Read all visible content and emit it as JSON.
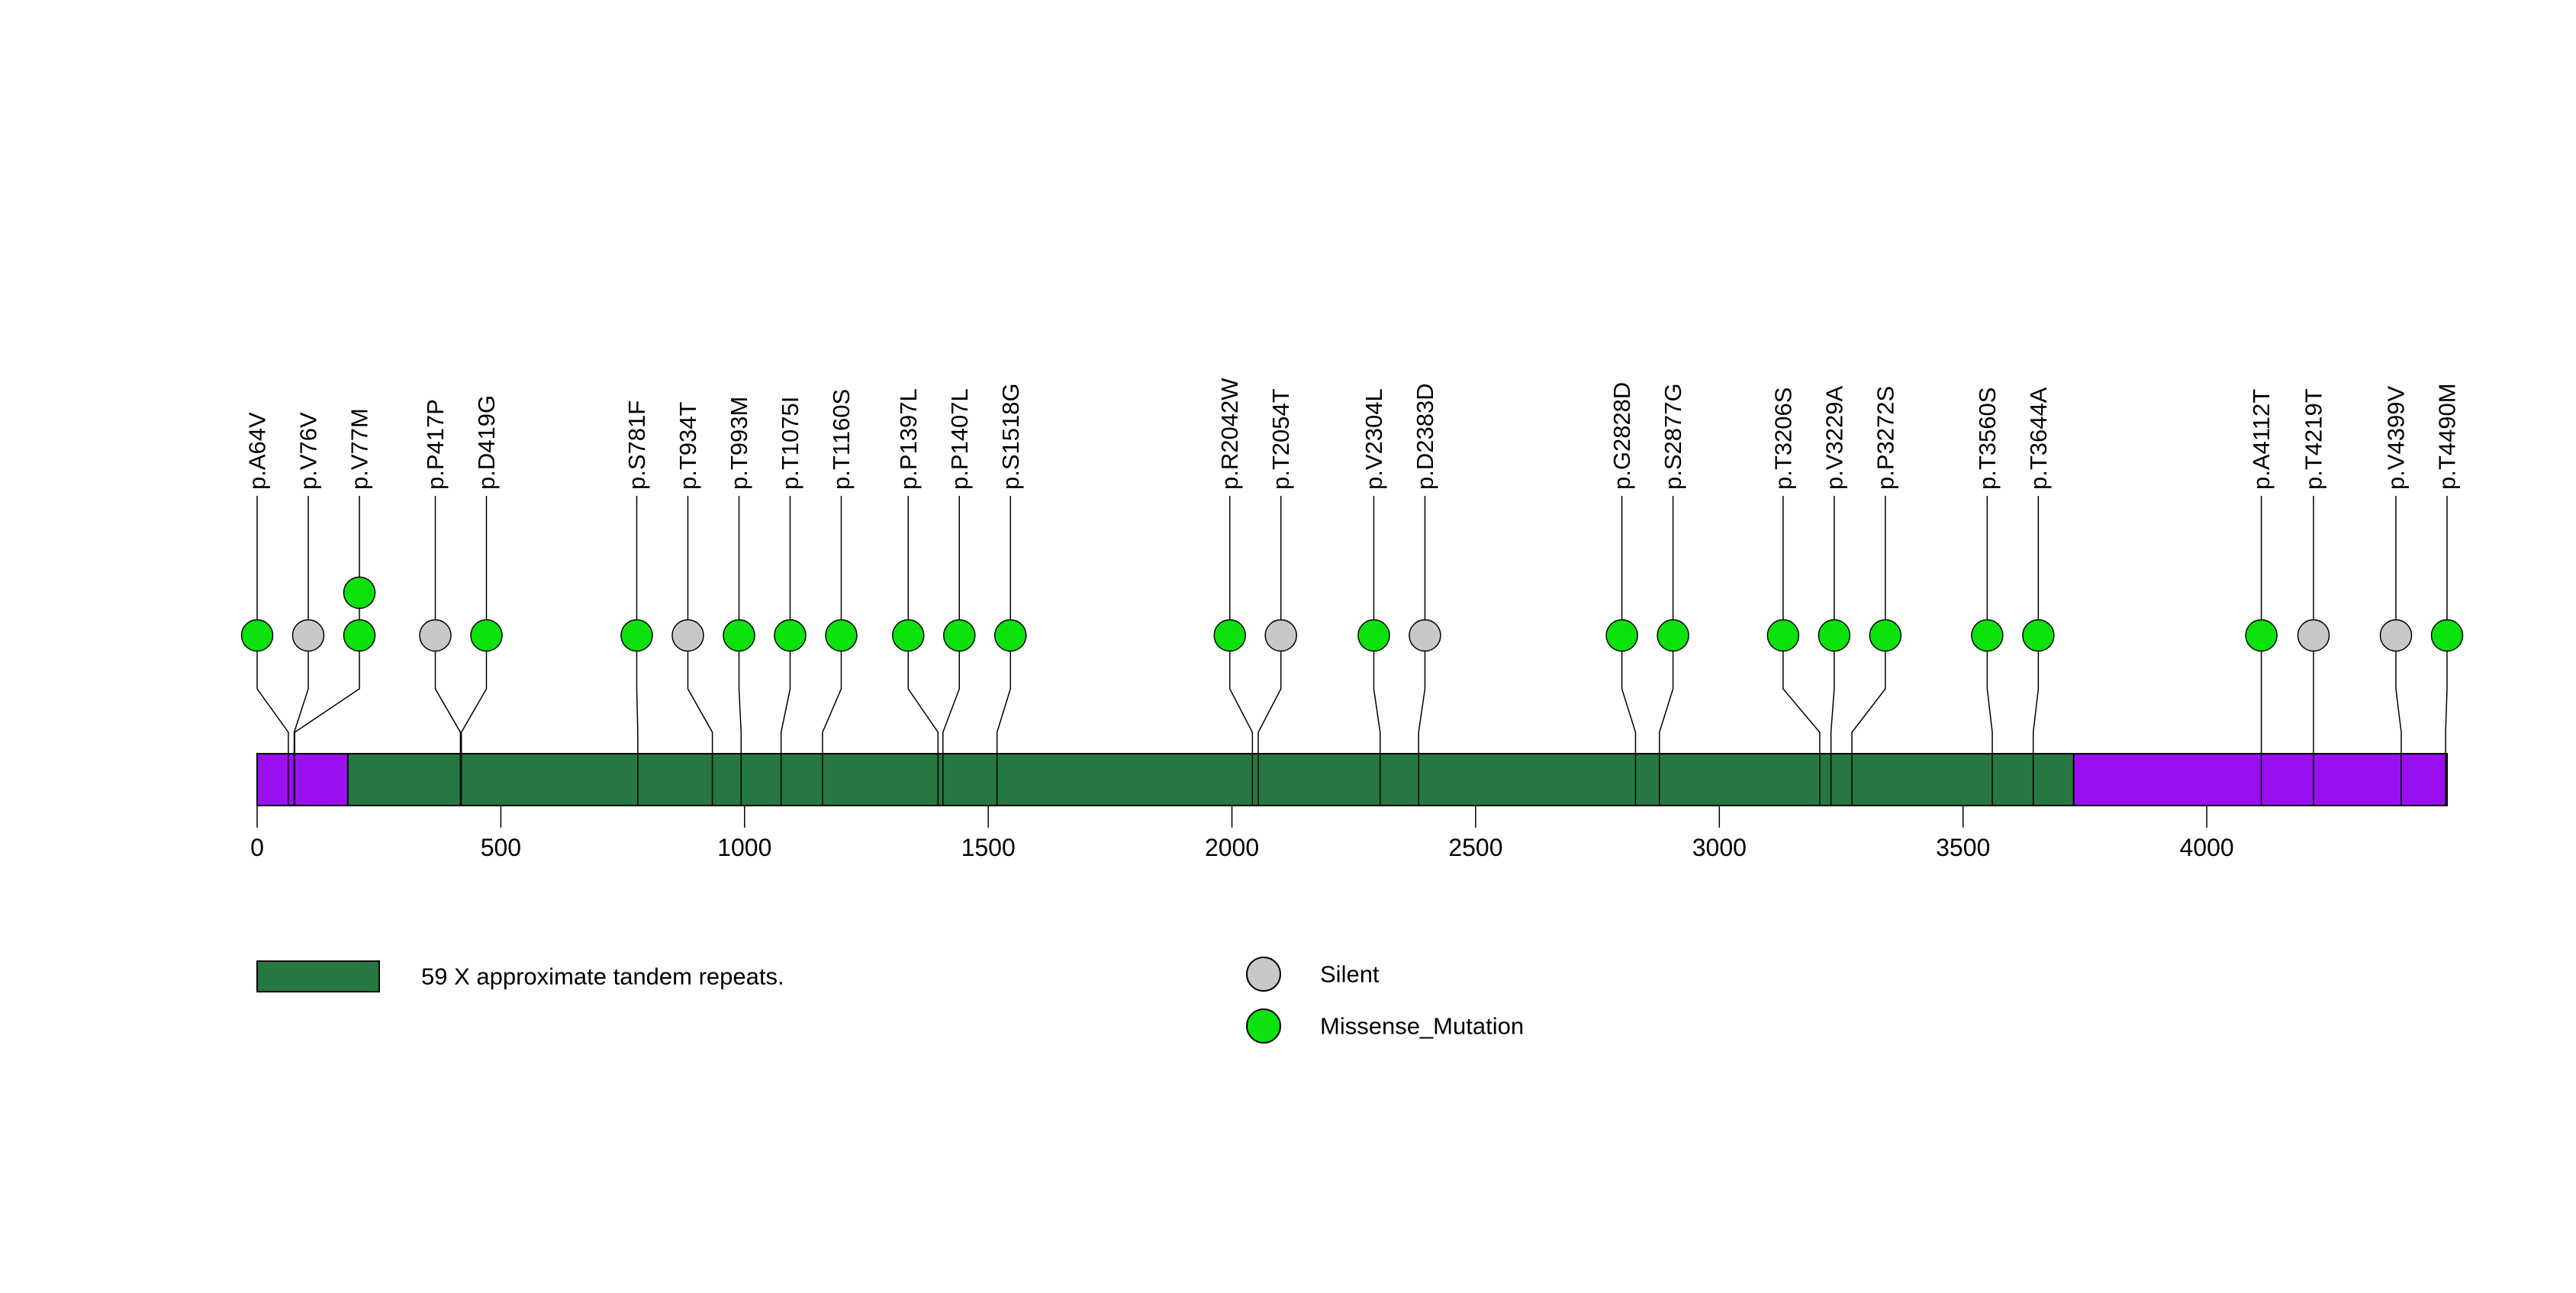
{
  "chart_data": {
    "type": "lollipop",
    "title": "",
    "xlabel": "",
    "axis": {
      "xmin": 0,
      "xmax": 4493,
      "ticks": [
        0,
        500,
        1000,
        1500,
        2000,
        2500,
        3000,
        3500,
        4000
      ],
      "grid": false
    },
    "protein": {
      "length": 4493,
      "domain": {
        "label": "59 X approximate tandem repeats.",
        "start": 186,
        "end": 3727
      }
    },
    "colors": {
      "backbone": "#9A0FF0",
      "domain": "#267741",
      "Silent": "#C8C8C8",
      "Missense_Mutation": "#0BE20B",
      "outline": "#000000"
    },
    "mutations": [
      {
        "label": "p.A64V",
        "pos": 64,
        "type": "Missense_Mutation",
        "count": 1
      },
      {
        "label": "p.V76V",
        "pos": 76,
        "type": "Silent",
        "count": 1
      },
      {
        "label": "p.V77M",
        "pos": 77,
        "type": "Missense_Mutation",
        "count": 2
      },
      {
        "label": "p.P417P",
        "pos": 417,
        "type": "Silent",
        "count": 1
      },
      {
        "label": "p.D419G",
        "pos": 419,
        "type": "Missense_Mutation",
        "count": 1
      },
      {
        "label": "p.S781F",
        "pos": 781,
        "type": "Missense_Mutation",
        "count": 1
      },
      {
        "label": "p.T934T",
        "pos": 934,
        "type": "Silent",
        "count": 1
      },
      {
        "label": "p.T993M",
        "pos": 993,
        "type": "Missense_Mutation",
        "count": 1
      },
      {
        "label": "p.T1075I",
        "pos": 1075,
        "type": "Missense_Mutation",
        "count": 1
      },
      {
        "label": "p.T1160S",
        "pos": 1160,
        "type": "Missense_Mutation",
        "count": 1
      },
      {
        "label": "p.P1397L",
        "pos": 1397,
        "type": "Missense_Mutation",
        "count": 1
      },
      {
        "label": "p.P1407L",
        "pos": 1407,
        "type": "Missense_Mutation",
        "count": 1
      },
      {
        "label": "p.S1518G",
        "pos": 1518,
        "type": "Missense_Mutation",
        "count": 1
      },
      {
        "label": "p.R2042W",
        "pos": 2042,
        "type": "Missense_Mutation",
        "count": 1
      },
      {
        "label": "p.T2054T",
        "pos": 2054,
        "type": "Silent",
        "count": 1
      },
      {
        "label": "p.V2304L",
        "pos": 2304,
        "type": "Missense_Mutation",
        "count": 1
      },
      {
        "label": "p.D2383D",
        "pos": 2383,
        "type": "Silent",
        "count": 1
      },
      {
        "label": "p.G2828D",
        "pos": 2828,
        "type": "Missense_Mutation",
        "count": 1
      },
      {
        "label": "p.S2877G",
        "pos": 2877,
        "type": "Missense_Mutation",
        "count": 1
      },
      {
        "label": "p.T3206S",
        "pos": 3206,
        "type": "Missense_Mutation",
        "count": 1
      },
      {
        "label": "p.V3229A",
        "pos": 3229,
        "type": "Missense_Mutation",
        "count": 1
      },
      {
        "label": "p.P3272S",
        "pos": 3272,
        "type": "Missense_Mutation",
        "count": 1
      },
      {
        "label": "p.T3560S",
        "pos": 3560,
        "type": "Missense_Mutation",
        "count": 1
      },
      {
        "label": "p.T3644A",
        "pos": 3644,
        "type": "Missense_Mutation",
        "count": 1
      },
      {
        "label": "p.A4112T",
        "pos": 4112,
        "type": "Missense_Mutation",
        "count": 1
      },
      {
        "label": "p.T4219T",
        "pos": 4219,
        "type": "Silent",
        "count": 1
      },
      {
        "label": "p.V4399V",
        "pos": 4399,
        "type": "Silent",
        "count": 1
      },
      {
        "label": "p.T4490M",
        "pos": 4490,
        "type": "Missense_Mutation",
        "count": 1
      }
    ],
    "legend": {
      "domain_label": "59 X approximate tandem repeats.",
      "items": [
        {
          "label": "Silent",
          "type": "Silent"
        },
        {
          "label": "Missense_Mutation",
          "type": "Missense_Mutation"
        }
      ]
    }
  }
}
